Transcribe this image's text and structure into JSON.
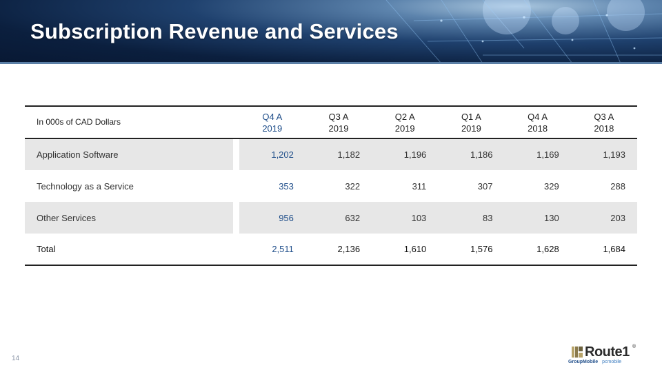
{
  "slide": {
    "title": "Subscription Revenue and Services",
    "page_number": "14"
  },
  "table": {
    "unit_label": "In 000s of CAD Dollars",
    "columns": [
      {
        "line1": "Q4 A",
        "line2": "2019"
      },
      {
        "line1": "Q3 A",
        "line2": "2019"
      },
      {
        "line1": "Q2 A",
        "line2": "2019"
      },
      {
        "line1": "Q1 A",
        "line2": "2019"
      },
      {
        "line1": "Q4 A",
        "line2": "2018"
      },
      {
        "line1": "Q3 A",
        "line2": "2018"
      }
    ],
    "rows": [
      {
        "label": "Application Software",
        "values": [
          "1,202",
          "1,182",
          "1,196",
          "1,186",
          "1,169",
          "1,193"
        ]
      },
      {
        "label": "Technology as a Service",
        "values": [
          "353",
          "322",
          "311",
          "307",
          "329",
          "288"
        ]
      },
      {
        "label": "Other Services",
        "values": [
          "956",
          "632",
          "103",
          "83",
          "130",
          "203"
        ]
      },
      {
        "label": "Total",
        "values": [
          "2,511",
          "2,136",
          "1,610",
          "1,576",
          "1,628",
          "1,684"
        ]
      }
    ]
  },
  "logo": {
    "brand": "Route1",
    "registered": "®",
    "sub_group": "GroupMobile",
    "sub_pc": "pcmobile"
  },
  "colors": {
    "accent_blue": "#1f4e8a",
    "row_shade": "#e7e7e7",
    "banner_dark": "#0b1f3e"
  }
}
